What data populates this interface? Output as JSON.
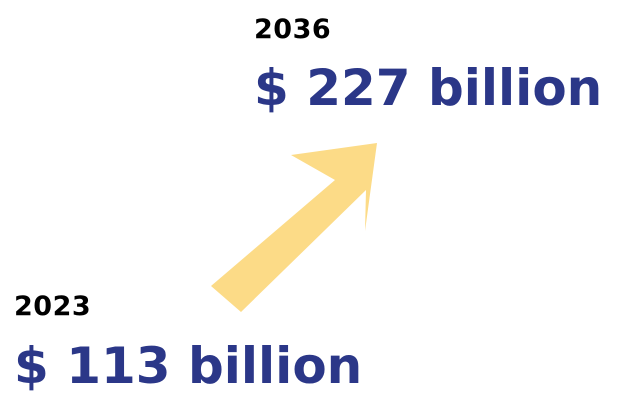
{
  "start": {
    "year": "2023",
    "amount": "$ 113 billion"
  },
  "end": {
    "year": "2036",
    "amount": "$ 227 billion"
  },
  "arrow": {
    "icon": "arrow-up-right-icon",
    "color": "#FCDB87"
  },
  "colors": {
    "amount_text": "#2B3788",
    "year_text": "#000000",
    "background": "#FFFFFF"
  }
}
